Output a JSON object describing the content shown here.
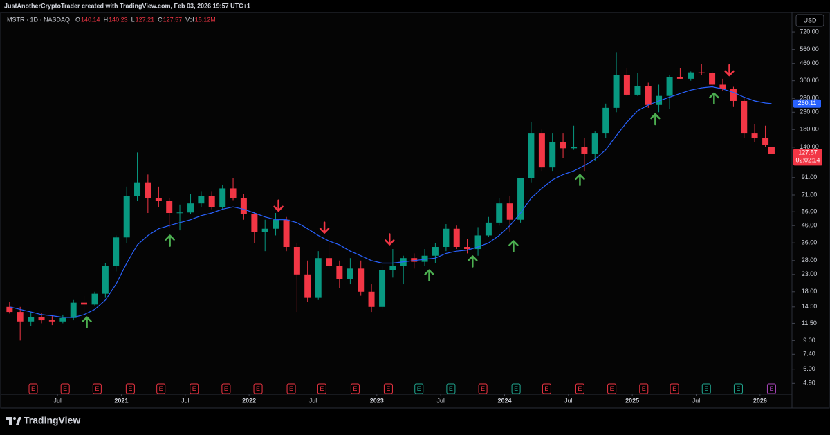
{
  "header": {
    "credit": "JustAnotherCryptoTrader created with TradingView.com, Feb 03, 2026 19:57 UTC+1",
    "brand": "TradingView"
  },
  "chart_data": {
    "type": "candlestick",
    "symbol": "MSTR · 1D · NASDAQ",
    "legend_keys": [
      "O",
      "H",
      "L",
      "C",
      "Vol"
    ],
    "volume": "15.12M",
    "currency": "USD",
    "countdown": "02:02:14",
    "log_scale": true,
    "grid": false,
    "up_color": "#089981",
    "down_color": "#f23645",
    "ma_color": "#2962ff",
    "xlim": [
      2020.05,
      2026.25
    ],
    "xticks": [
      {
        "value": 2020.5,
        "label": "Jul"
      },
      2021,
      {
        "value": 2021.5,
        "label": "Jul"
      },
      2022,
      {
        "value": 2022.5,
        "label": "Jul"
      },
      2023,
      {
        "value": 2023.5,
        "label": "Jul"
      },
      2024,
      {
        "value": 2024.5,
        "label": "Jul"
      },
      2025,
      {
        "value": 2025.5,
        "label": "Jul"
      },
      2026
    ],
    "ylim": [
      4.2,
      930
    ],
    "yticks": [
      {
        "value": 720,
        "label": "720.00"
      },
      {
        "value": 560,
        "label": "560.00"
      },
      {
        "value": 460,
        "label": "460.00"
      },
      {
        "value": 360,
        "label": "360.00"
      },
      {
        "value": 280,
        "label": "280.00"
      },
      {
        "value": 230,
        "label": "230.00"
      },
      {
        "value": 180,
        "label": "180.00"
      },
      {
        "value": 140,
        "label": "140.00"
      },
      {
        "value": 91,
        "label": "91.00"
      },
      {
        "value": 71,
        "label": "71.00"
      },
      {
        "value": 56,
        "label": "56.00"
      },
      {
        "value": 46,
        "label": "46.00"
      },
      {
        "value": 36,
        "label": "36.00"
      },
      {
        "value": 28,
        "label": "28.00"
      },
      {
        "value": 23,
        "label": "23.00"
      },
      {
        "value": 18,
        "label": "18.00"
      },
      {
        "value": 14.5,
        "label": "14.50"
      },
      {
        "value": 11.5,
        "label": "11.50"
      },
      {
        "value": 9,
        "label": "9.00"
      },
      {
        "value": 7.4,
        "label": "7.40"
      },
      {
        "value": 6,
        "label": "6.00"
      },
      {
        "value": 4.9,
        "label": "4.90"
      }
    ],
    "x": [
      2020.125,
      2020.208,
      2020.292,
      2020.375,
      2020.458,
      2020.542,
      2020.625,
      2020.708,
      2020.792,
      2020.875,
      2020.958,
      2021.042,
      2021.125,
      2021.208,
      2021.292,
      2021.375,
      2021.458,
      2021.542,
      2021.625,
      2021.708,
      2021.792,
      2021.875,
      2021.958,
      2022.042,
      2022.125,
      2022.208,
      2022.292,
      2022.375,
      2022.458,
      2022.542,
      2022.625,
      2022.708,
      2022.792,
      2022.875,
      2022.958,
      2023.042,
      2023.125,
      2023.208,
      2023.292,
      2023.375,
      2023.458,
      2023.542,
      2023.625,
      2023.708,
      2023.792,
      2023.875,
      2023.958,
      2024.042,
      2024.125,
      2024.208,
      2024.292,
      2024.375,
      2024.458,
      2024.542,
      2024.625,
      2024.708,
      2024.792,
      2024.875,
      2024.958,
      2025.042,
      2025.125,
      2025.208,
      2025.292,
      2025.375,
      2025.458,
      2025.542,
      2025.625,
      2025.708,
      2025.792,
      2025.875,
      2025.958,
      2026.042,
      2026.09
    ],
    "open": [
      14.5,
      13.5,
      11.8,
      12.5,
      12.0,
      11.8,
      12.4,
      15.4,
      15.0,
      17.5,
      26.0,
      38.9,
      70.0,
      85.0,
      68.0,
      65.0,
      55.0,
      55.4,
      63.0,
      70.0,
      60.0,
      78.0,
      68.0,
      54.0,
      42.0,
      44.0,
      50.0,
      34.0,
      23.0,
      16.5,
      29.0,
      26.0,
      21.5,
      25.0,
      18.0,
      14.5,
      24.5,
      26.0,
      29.0,
      27.5,
      30.0,
      34.0,
      44.0,
      34.0,
      33.0,
      40.0,
      48.0,
      63.0,
      50.0,
      90.0,
      170.0,
      105.0,
      150.0,
      138.0,
      140.0,
      128.0,
      170.0,
      245.0,
      390.0,
      295.0,
      335.0,
      255.0,
      290.0,
      380.0,
      370.0,
      405.0,
      400.0,
      340.0,
      320.0,
      270.0,
      170.0,
      160.0,
      140.14
    ],
    "high": [
      15.5,
      14.5,
      13.5,
      13.3,
      12.8,
      13.0,
      16.0,
      17.0,
      18.0,
      27.0,
      40.0,
      80.0,
      130.0,
      95.0,
      80.0,
      68.0,
      62.0,
      72.0,
      75.0,
      75.0,
      82.0,
      90.0,
      72.0,
      56.0,
      50.0,
      55.0,
      52.0,
      36.0,
      28.0,
      32.0,
      36.0,
      28.0,
      29.0,
      28.0,
      20.0,
      26.0,
      33.0,
      30.0,
      31.0,
      33.0,
      36.0,
      47.0,
      46.0,
      38.0,
      45.0,
      52.0,
      68.0,
      70.0,
      90.0,
      200.0,
      180.0,
      170.0,
      170.0,
      190.0,
      160.0,
      175.0,
      260.0,
      540.0,
      430.0,
      400.0,
      350.0,
      340.0,
      390.0,
      430.0,
      410.0,
      455.0,
      410.0,
      370.0,
      330.0,
      280.0,
      195.0,
      190.0,
      140.23
    ],
    "low": [
      13.2,
      9.0,
      11.0,
      11.5,
      11.2,
      11.5,
      12.0,
      13.5,
      14.8,
      16.5,
      24.0,
      36.0,
      65.0,
      55.0,
      60.0,
      45.0,
      43.0,
      54.0,
      60.0,
      58.0,
      58.0,
      66.0,
      50.0,
      36.0,
      32.0,
      40.0,
      32.0,
      13.5,
      15.5,
      16.0,
      25.0,
      19.0,
      20.0,
      17.0,
      13.5,
      14.0,
      22.0,
      20.0,
      25.0,
      26.0,
      27.0,
      32.0,
      33.0,
      31.0,
      30.0,
      39.0,
      46.0,
      42.0,
      48.0,
      85.0,
      100.0,
      100.0,
      120.0,
      135.0,
      100.0,
      115.0,
      160.0,
      230.0,
      290.0,
      290.0,
      245.0,
      230.0,
      240.0,
      370.0,
      360.0,
      390.0,
      330.0,
      310.0,
      250.0,
      160.0,
      150.0,
      140.0,
      127.21
    ],
    "close": [
      13.5,
      11.8,
      12.5,
      12.0,
      11.8,
      12.4,
      15.4,
      15.0,
      17.5,
      26.0,
      38.9,
      70.0,
      85.0,
      68.0,
      65.0,
      55.0,
      55.4,
      63.0,
      70.0,
      60.0,
      78.0,
      68.0,
      54.0,
      42.0,
      44.0,
      50.0,
      34.0,
      23.0,
      16.5,
      29.0,
      26.0,
      21.5,
      25.0,
      18.0,
      14.5,
      24.5,
      26.0,
      29.0,
      27.5,
      30.0,
      34.0,
      44.0,
      34.0,
      33.0,
      40.0,
      48.0,
      63.0,
      50.0,
      90.0,
      170.0,
      105.0,
      150.0,
      138.0,
      140.0,
      128.0,
      170.0,
      245.0,
      390.0,
      295.0,
      335.0,
      255.0,
      290.0,
      380.0,
      370.0,
      405.0,
      400.0,
      340.0,
      320.0,
      270.0,
      170.0,
      160.0,
      145.0,
      127.57
    ],
    "ma": [
      14.5,
      14.0,
      13.5,
      13.0,
      12.8,
      12.5,
      12.5,
      13.0,
      14.0,
      16.0,
      20.0,
      27.0,
      35.0,
      40.0,
      44.0,
      46.0,
      48.0,
      50.0,
      53.0,
      55.0,
      58.0,
      60.0,
      58.0,
      55.0,
      52.0,
      50.0,
      50.0,
      48.0,
      44.0,
      40.0,
      37.0,
      35.0,
      32.0,
      30.0,
      28.0,
      27.0,
      27.0,
      27.5,
      28.0,
      28.5,
      29.0,
      31.0,
      32.0,
      32.5,
      34.0,
      36.0,
      40.0,
      46.0,
      55.0,
      68.0,
      78.0,
      88.0,
      95.0,
      100.0,
      108.0,
      118.0,
      135.0,
      165.0,
      200.0,
      235.0,
      255.0,
      270.0,
      285.0,
      300.0,
      315.0,
      325.0,
      330.0,
      320.0,
      305.0,
      285.0,
      270.0,
      262.0,
      260.11
    ],
    "buy_color": "#4caf50",
    "sell_color": "#f23645",
    "buy_signals": {
      "x": [
        2020.73,
        2021.38,
        2023.41,
        2023.75,
        2024.07,
        2024.59,
        2025.18,
        2025.64
      ],
      "y": [
        11.7,
        37.3,
        22.8,
        27.8,
        34.5,
        88.3,
        209,
        281
      ]
    },
    "sell_signals": {
      "x": [
        2022.23,
        2022.59,
        2023.1,
        2025.76
      ],
      "y": [
        60.8,
        44.5,
        37.7,
        416
      ]
    },
    "earnings": {
      "label": "E",
      "x": [
        2020.31,
        2020.56,
        2020.81,
        2021.07,
        2021.31,
        2021.57,
        2021.82,
        2022.07,
        2022.33,
        2022.57,
        2022.83,
        2023.09,
        2023.33,
        2023.58,
        2023.83,
        2024.09,
        2024.33,
        2024.59,
        2024.84,
        2025.09,
        2025.33,
        2025.58,
        2025.83,
        2026.09
      ],
      "colors": [
        "#f23645",
        "#f23645",
        "#f23645",
        "#f23645",
        "#f23645",
        "#f23645",
        "#f23645",
        "#f23645",
        "#f23645",
        "#f23645",
        "#f23645",
        "#f23645",
        "#22ab94",
        "#22ab94",
        "#f23645",
        "#22ab94",
        "#f23645",
        "#f23645",
        "#f23645",
        "#f23645",
        "#f23645",
        "#22ab94",
        "#22ab94",
        "#ab47bc"
      ]
    }
  }
}
